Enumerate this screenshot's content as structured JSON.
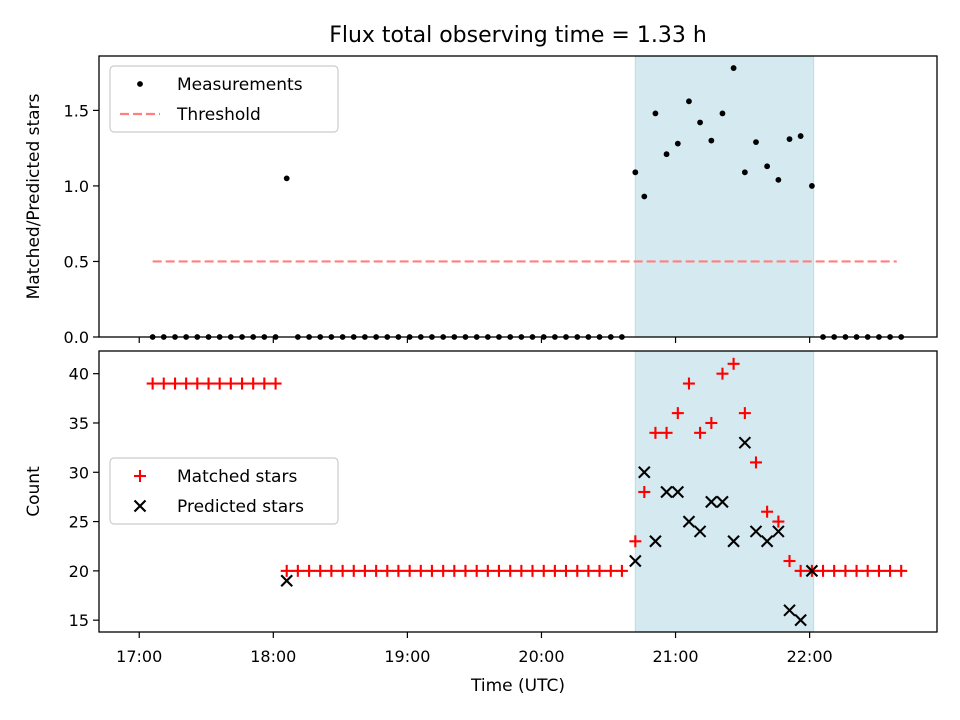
{
  "chart_data": {
    "type": "scatter",
    "title": "Flux total observing time = 1.33 h",
    "xlabel": "Time (UTC)",
    "x_range_hours": [
      16.7,
      22.95
    ],
    "x_ticks": [
      {
        "value": 17,
        "label": "17:00"
      },
      {
        "value": 18,
        "label": "18:00"
      },
      {
        "value": 19,
        "label": "19:00"
      },
      {
        "value": 20,
        "label": "20:00"
      },
      {
        "value": 21,
        "label": "21:00"
      },
      {
        "value": 22,
        "label": "22:00"
      }
    ],
    "shaded_interval_hours": [
      20.7,
      22.03
    ],
    "shade_color": "#d4eaf0",
    "panels": [
      {
        "id": "ratio",
        "ylabel": "Matched/Predicted stars",
        "ylim": [
          0,
          1.86
        ],
        "y_ticks": [
          {
            "value": 0,
            "label": "0.0"
          },
          {
            "value": 0.5,
            "label": "0.5"
          },
          {
            "value": 1.0,
            "label": "1.0"
          },
          {
            "value": 1.5,
            "label": "1.5"
          }
        ],
        "legend": [
          {
            "label": "Measurements",
            "marker": "dot",
            "color": "#000000"
          },
          {
            "label": "Threshold",
            "marker": "dashed",
            "color": "#ff7f7f"
          }
        ],
        "threshold": {
          "value": 0.5,
          "x_start": 17.1,
          "x_end": 22.65,
          "color": "#ff7f7f"
        },
        "series": [
          {
            "name": "Measurements",
            "marker": "dot",
            "color": "#000000",
            "x": [
              17.1,
              17.183,
              17.267,
              17.35,
              17.433,
              17.517,
              17.6,
              17.683,
              17.767,
              17.85,
              17.933,
              18.017,
              18.1,
              18.183,
              18.267,
              18.35,
              18.433,
              18.517,
              18.6,
              18.683,
              18.767,
              18.85,
              18.933,
              19.017,
              19.1,
              19.183,
              19.267,
              19.35,
              19.433,
              19.517,
              19.6,
              19.683,
              19.767,
              19.85,
              19.933,
              20.017,
              20.1,
              20.183,
              20.267,
              20.35,
              20.433,
              20.517,
              20.6,
              20.7,
              20.767,
              20.85,
              20.933,
              21.017,
              21.1,
              21.183,
              21.267,
              21.35,
              21.433,
              21.517,
              21.6,
              21.683,
              21.767,
              21.85,
              21.933,
              22.017,
              22.1,
              22.183,
              22.267,
              22.35,
              22.433,
              22.517,
              22.6,
              22.683
            ],
            "y": [
              0,
              0,
              0,
              0,
              0,
              0,
              0,
              0,
              0,
              0,
              0,
              0,
              1.05,
              0,
              0,
              0,
              0,
              0,
              0,
              0,
              0,
              0,
              0,
              0,
              0,
              0,
              0,
              0,
              0,
              0,
              0,
              0,
              0,
              0,
              0,
              0,
              0,
              0,
              0,
              0,
              0,
              0,
              0,
              1.09,
              0.93,
              1.48,
              1.21,
              1.28,
              1.56,
              1.42,
              1.3,
              1.48,
              1.78,
              1.09,
              1.29,
              1.13,
              1.04,
              1.31,
              1.33,
              1.0,
              0,
              0,
              0,
              0,
              0,
              0,
              0,
              0
            ]
          }
        ]
      },
      {
        "id": "counts",
        "ylabel": "Count",
        "ylim": [
          13.8,
          42.3
        ],
        "y_ticks": [
          {
            "value": 15,
            "label": "15"
          },
          {
            "value": 20,
            "label": "20"
          },
          {
            "value": 25,
            "label": "25"
          },
          {
            "value": 30,
            "label": "30"
          },
          {
            "value": 35,
            "label": "35"
          },
          {
            "value": 40,
            "label": "40"
          }
        ],
        "legend": [
          {
            "label": "Matched stars",
            "marker": "plus",
            "color": "#ff0000"
          },
          {
            "label": "Predicted stars",
            "marker": "x",
            "color": "#000000"
          }
        ],
        "series": [
          {
            "name": "Matched stars",
            "marker": "plus",
            "color": "#ff0000",
            "x": [
              17.1,
              17.183,
              17.267,
              17.35,
              17.433,
              17.517,
              17.6,
              17.683,
              17.767,
              17.85,
              17.933,
              18.017,
              18.1,
              18.183,
              18.267,
              18.35,
              18.433,
              18.517,
              18.6,
              18.683,
              18.767,
              18.85,
              18.933,
              19.017,
              19.1,
              19.183,
              19.267,
              19.35,
              19.433,
              19.517,
              19.6,
              19.683,
              19.767,
              19.85,
              19.933,
              20.017,
              20.1,
              20.183,
              20.267,
              20.35,
              20.433,
              20.517,
              20.6,
              20.7,
              20.767,
              20.85,
              20.933,
              21.017,
              21.1,
              21.183,
              21.267,
              21.35,
              21.433,
              21.517,
              21.6,
              21.683,
              21.767,
              21.85,
              21.933,
              22.017,
              22.1,
              22.183,
              22.267,
              22.35,
              22.433,
              22.517,
              22.6,
              22.683
            ],
            "y": [
              39,
              39,
              39,
              39,
              39,
              39,
              39,
              39,
              39,
              39,
              39,
              39,
              20,
              20,
              20,
              20,
              20,
              20,
              20,
              20,
              20,
              20,
              20,
              20,
              20,
              20,
              20,
              20,
              20,
              20,
              20,
              20,
              20,
              20,
              20,
              20,
              20,
              20,
              20,
              20,
              20,
              20,
              20,
              23,
              28,
              34,
              34,
              36,
              39,
              34,
              35,
              40,
              41,
              36,
              31,
              26,
              25,
              21,
              20,
              20,
              20,
              20,
              20,
              20,
              20,
              20,
              20,
              20
            ]
          },
          {
            "name": "Predicted stars",
            "marker": "x",
            "color": "#000000",
            "x": [
              18.1,
              20.7,
              20.767,
              20.85,
              20.933,
              21.017,
              21.1,
              21.183,
              21.267,
              21.35,
              21.433,
              21.517,
              21.6,
              21.683,
              21.767,
              21.85,
              21.933,
              22.017
            ],
            "y": [
              19,
              21,
              30,
              23,
              28,
              28,
              25,
              24,
              27,
              27,
              23,
              33,
              24,
              23,
              24,
              16,
              15,
              20
            ]
          }
        ]
      }
    ]
  }
}
